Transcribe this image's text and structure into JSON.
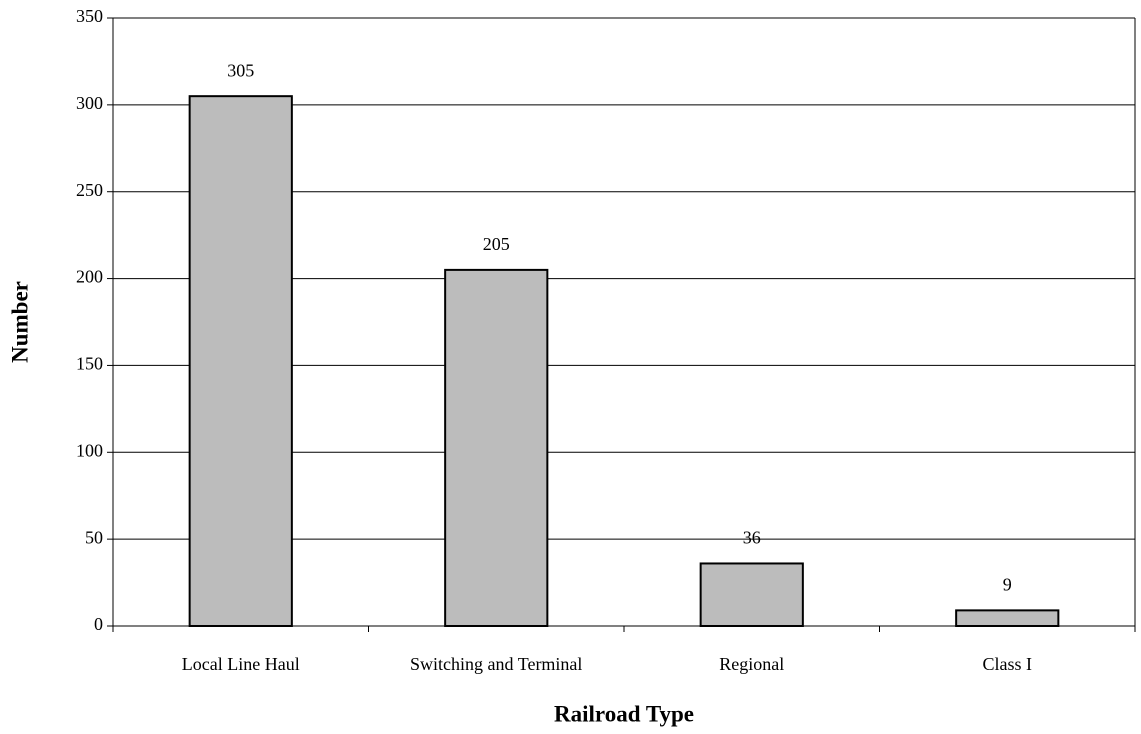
{
  "chart_data": {
    "type": "bar",
    "categories": [
      "Local Line Haul",
      "Switching and Terminal",
      "Regional",
      "Class I"
    ],
    "values": [
      305,
      205,
      36,
      9
    ],
    "color": "#bcbcbc",
    "xlabel": "Railroad Type",
    "ylabel": "Number",
    "ylim": [
      0,
      350
    ],
    "yticks": [
      0,
      50,
      100,
      150,
      200,
      250,
      300,
      350
    ],
    "grid": true
  }
}
